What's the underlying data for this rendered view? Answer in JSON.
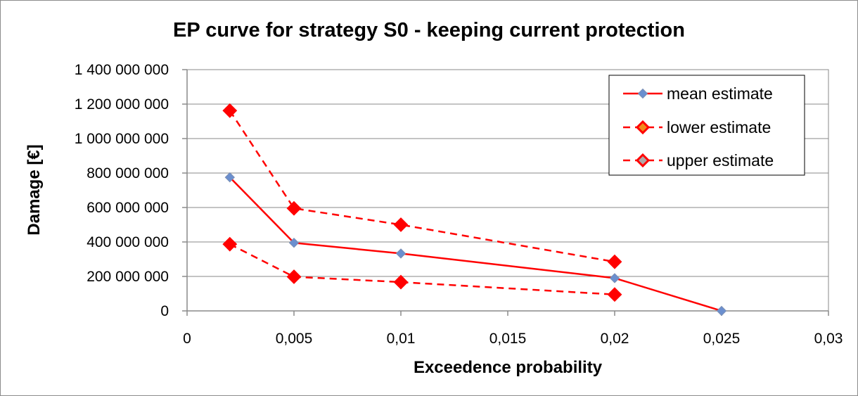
{
  "chart_data": {
    "type": "line",
    "title": "EP curve for strategy S0 - keeping current protection",
    "xlabel": "Exceedence probability",
    "ylabel": "Damage [€]",
    "xlim": [
      0,
      0.03
    ],
    "ylim": [
      0,
      1400000000
    ],
    "x_ticks": [
      "0",
      "0,005",
      "0,01",
      "0,015",
      "0,02",
      "0,025",
      "0,03"
    ],
    "x_tick_values": [
      0,
      0.005,
      0.01,
      0.015,
      0.02,
      0.025,
      0.03
    ],
    "y_ticks": [
      "0",
      "200 000 000",
      "400 000 000",
      "600 000 000",
      "800 000 000",
      "1 000 000 000",
      "1 200 000 000",
      "1 400 000 000"
    ],
    "y_tick_values": [
      0,
      200000000,
      400000000,
      600000000,
      800000000,
      1000000000,
      1200000000,
      1400000000
    ],
    "grid": true,
    "legend_position": "top-right",
    "series": [
      {
        "name": "mean estimate",
        "style": "solid",
        "color": "#ff0000",
        "marker_color": "#6b8fcf",
        "marker": "diamond",
        "x": [
          0.002,
          0.005,
          0.01,
          0.02,
          0.025
        ],
        "values": [
          775000000,
          395000000,
          333000000,
          190000000,
          0
        ]
      },
      {
        "name": "lower estimate",
        "style": "dashed",
        "color": "#ff0000",
        "marker_color": "#ff0000",
        "marker": "diamond",
        "x": [
          0.002,
          0.005,
          0.01,
          0.02
        ],
        "values": [
          387000000,
          198000000,
          167000000,
          95000000
        ]
      },
      {
        "name": "upper estimate",
        "style": "dashed",
        "color": "#ff0000",
        "marker_color": "#ff0000",
        "marker": "diamond",
        "x": [
          0.002,
          0.005,
          0.01,
          0.02
        ],
        "values": [
          1162000000,
          595000000,
          500000000,
          285000000
        ]
      }
    ]
  }
}
